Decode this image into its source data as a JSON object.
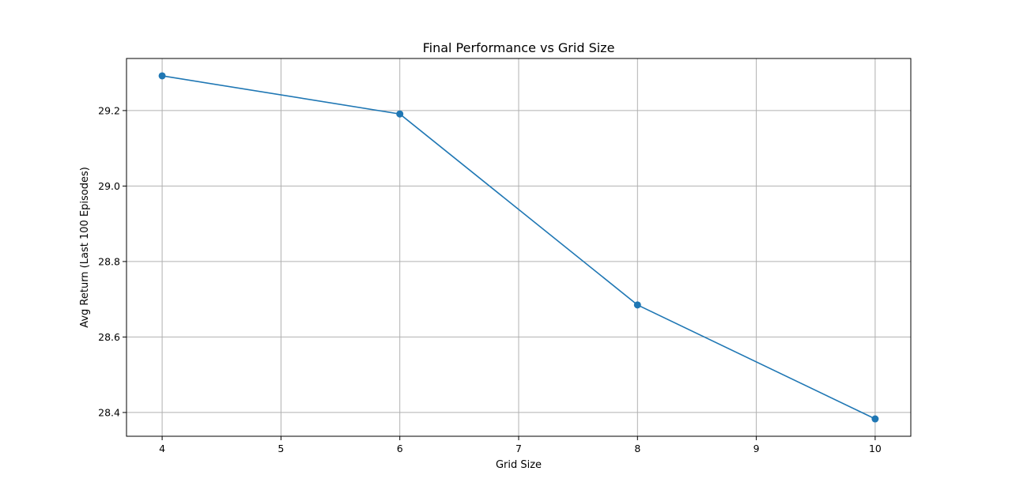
{
  "chart_data": {
    "type": "line",
    "title": "Final Performance vs Grid Size",
    "xlabel": "Grid Size",
    "ylabel": "Avg Return (Last 100 Episodes)",
    "x": [
      4,
      6,
      8,
      10
    ],
    "series": [
      {
        "values": [
          29.292,
          29.191,
          28.685,
          28.383
        ]
      }
    ],
    "xlim": [
      3.7,
      10.3
    ],
    "ylim": [
      28.337,
      29.338
    ],
    "xticks": [
      4,
      5,
      6,
      7,
      8,
      9,
      10
    ],
    "yticks": [
      28.4,
      28.6,
      28.8,
      29.0,
      29.2
    ],
    "xtick_labels": [
      "4",
      "5",
      "6",
      "7",
      "8",
      "9",
      "10"
    ],
    "ytick_labels": [
      "28.4",
      "28.6",
      "28.8",
      "29.0",
      "29.2"
    ],
    "grid": true,
    "line_color": "#1f77b4",
    "marker": "circle"
  }
}
